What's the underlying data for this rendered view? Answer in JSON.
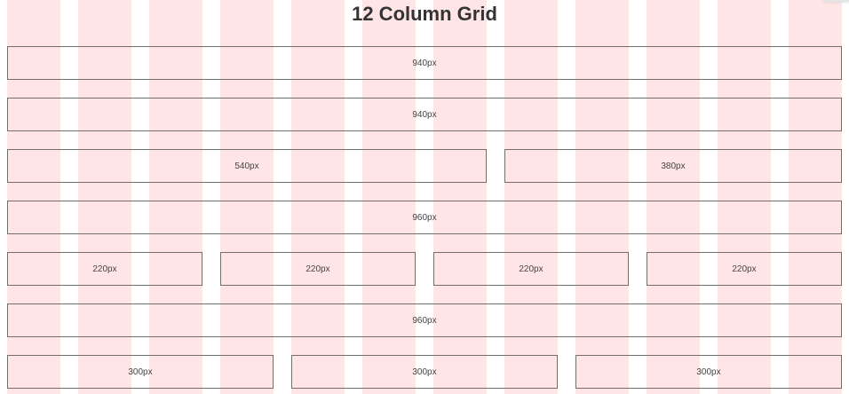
{
  "page": {
    "title": "12 Column Grid",
    "column_count": 12
  },
  "rows": [
    {
      "boxes": [
        {
          "label": "940px"
        }
      ]
    },
    {
      "boxes": [
        {
          "label": "940px"
        }
      ]
    },
    {
      "boxes": [
        {
          "label": "540px"
        },
        {
          "label": "380px"
        }
      ]
    },
    {
      "boxes": [
        {
          "label": "960px"
        }
      ]
    },
    {
      "boxes": [
        {
          "label": "220px"
        },
        {
          "label": "220px"
        },
        {
          "label": "220px"
        },
        {
          "label": "220px"
        }
      ]
    },
    {
      "boxes": [
        {
          "label": "960px"
        }
      ]
    },
    {
      "boxes": [
        {
          "label": "300px"
        },
        {
          "label": "300px"
        },
        {
          "label": "300px"
        }
      ]
    }
  ],
  "colors": {
    "column_guide": "#ffe5e5",
    "box_border": "#6f6f6f",
    "text": "#333333"
  }
}
